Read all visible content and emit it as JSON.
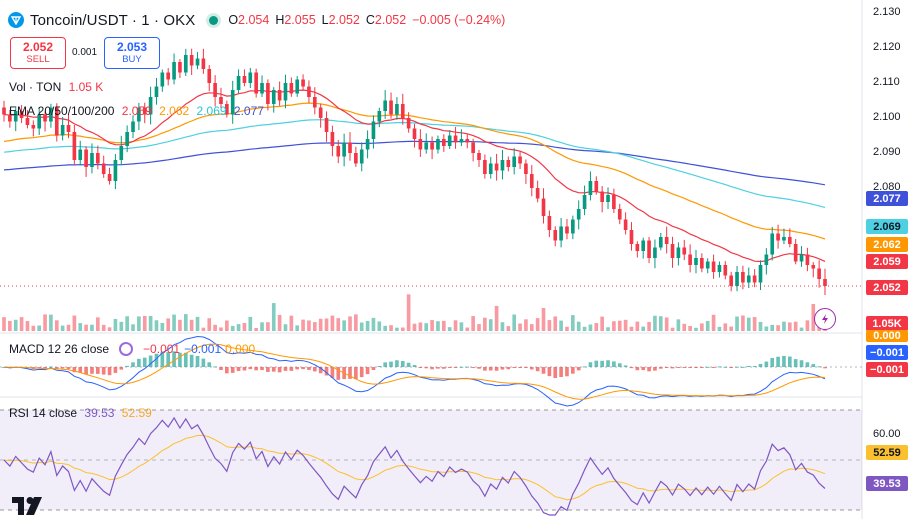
{
  "header": {
    "symbol": "Toncoin/USDT · 1 · OKX",
    "ohlc": [
      {
        "key": "O",
        "value": "2.054"
      },
      {
        "key": "H",
        "value": "2.055"
      },
      {
        "key": "L",
        "value": "2.052"
      },
      {
        "key": "C",
        "value": "2.052"
      }
    ],
    "change": "−0.005 (−0.24%)"
  },
  "trade": {
    "sell_price": "2.052",
    "sell_label": "SELL",
    "buy_price": "2.053",
    "buy_label": "BUY",
    "spread": "0.001"
  },
  "legends": {
    "vol_label": "Vol · TON",
    "vol_value": "1.05 K",
    "ema_label": "EMA 20/50/100/200",
    "ema_values": [
      "2.059",
      "2.062",
      "2.069",
      "2.077"
    ],
    "macd_label": "MACD 12 26 close",
    "macd_values": [
      "−0.001",
      "−0.001",
      "0.000"
    ],
    "rsi_label": "RSI 14 close",
    "rsi_values": [
      "39.53",
      "52.59"
    ]
  },
  "price_axis": {
    "ticks": [
      "2.130",
      "2.120",
      "2.110",
      "2.100",
      "2.090",
      "2.080"
    ],
    "tags": [
      "2.077",
      "2.069",
      "2.062",
      "2.059",
      "2.052"
    ],
    "vol_tag": "1.05K",
    "macd_tags": [
      "0.000",
      "−0.001",
      "−0.001"
    ],
    "rsi_ticks": [
      "60.00"
    ],
    "rsi_tags": [
      "52.59",
      "39.53"
    ]
  },
  "colors": {
    "up": "#089981",
    "down": "#f23645",
    "ema20": "#f23645",
    "ema50": "#ff9800",
    "ema100": "#4dd0e1",
    "ema200": "#3f51d8",
    "macd": "#2962ff",
    "signal": "#ff9800",
    "rsi": "#7e57c2",
    "rsi_ma": "#fbc02d"
  },
  "icons": [
    "toncoin-icon",
    "live-dot-icon",
    "flash-icon",
    "tradingview-logo-icon"
  ],
  "chart_data": [
    {
      "type": "candlestick",
      "title": "Toncoin/USDT · 1 · OKX",
      "ylim": [
        2.0495,
        2.1325
      ],
      "grid": false,
      "closes": [
        2.101,
        2.099,
        2.102,
        2.1,
        2.098,
        2.097,
        2.101,
        2.099,
        2.103,
        2.095,
        2.098,
        2.096,
        2.088,
        2.091,
        2.086,
        2.09,
        2.087,
        2.084,
        2.082,
        2.088,
        2.092,
        2.096,
        2.099,
        2.103,
        2.101,
        2.106,
        2.109,
        2.113,
        2.111,
        2.116,
        2.113,
        2.118,
        2.115,
        2.117,
        2.114,
        2.11,
        2.106,
        2.104,
        2.101,
        2.108,
        2.112,
        2.11,
        2.113,
        2.107,
        2.11,
        2.104,
        2.108,
        2.105,
        2.11,
        2.107,
        2.111,
        2.109,
        2.106,
        2.103,
        2.1,
        2.096,
        2.092,
        2.089,
        2.093,
        2.09,
        2.087,
        2.091,
        2.094,
        2.099,
        2.102,
        2.105,
        2.101,
        2.104,
        2.1,
        2.097,
        2.094,
        2.091,
        2.093,
        2.091,
        2.094,
        2.092,
        2.095,
        2.093,
        2.094,
        2.093,
        2.09,
        2.088,
        2.084,
        2.087,
        2.085,
        2.088,
        2.086,
        2.089,
        2.087,
        2.084,
        2.08,
        2.077,
        2.072,
        2.068,
        2.065,
        2.069,
        2.067,
        2.071,
        2.074,
        2.078,
        2.082,
        2.079,
        2.076,
        2.078,
        2.074,
        2.071,
        2.068,
        2.064,
        2.062,
        2.065,
        2.06,
        2.063,
        2.066,
        2.064,
        2.06,
        2.063,
        2.061,
        2.058,
        2.06,
        2.057,
        2.059,
        2.056,
        2.058,
        2.055,
        2.052,
        2.056,
        2.053,
        2.055,
        2.053,
        2.058,
        2.061,
        2.067,
        2.065,
        2.066,
        2.064,
        2.059,
        2.061,
        2.058,
        2.057,
        2.054,
        2.052
      ],
      "volume_last": "1.05K",
      "ema": [
        {
          "name": "EMA 20",
          "value": 2.059
        },
        {
          "name": "EMA 50",
          "value": 2.062
        },
        {
          "name": "EMA 100",
          "value": 2.069
        },
        {
          "name": "EMA 200",
          "value": 2.077
        }
      ]
    },
    {
      "type": "line",
      "title": "MACD 12 26 close",
      "series": [
        {
          "name": "MACD",
          "last": -0.001
        },
        {
          "name": "Signal",
          "last": -0.001
        },
        {
          "name": "Histogram",
          "last": 0.0
        }
      ]
    },
    {
      "type": "line",
      "title": "RSI 14 close",
      "ylim": [
        30,
        70
      ],
      "upper_band": 70,
      "lower_band": 30,
      "series": [
        {
          "name": "RSI",
          "last": 39.53
        },
        {
          "name": "RSI MA",
          "last": 52.59
        }
      ]
    }
  ]
}
